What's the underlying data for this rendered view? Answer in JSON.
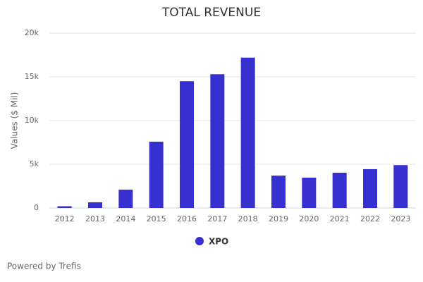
{
  "chart_data": {
    "type": "bar",
    "title": "TOTAL REVENUE",
    "y_label": "Values ($ Mil)",
    "categories": [
      "2012",
      "2013",
      "2014",
      "2015",
      "2016",
      "2017",
      "2018",
      "2019",
      "2020",
      "2021",
      "2022",
      "2023"
    ],
    "series": [
      {
        "name": "XPO",
        "color": "#3530cf",
        "values": [
          200,
          650,
          2100,
          7580,
          14500,
          15300,
          17200,
          3700,
          3470,
          4030,
          4440,
          4900
        ]
      }
    ],
    "ylim": [
      0,
      20000
    ],
    "yticks": [
      0,
      {
        "value": 5000,
        "label": "5k"
      },
      {
        "value": 10000,
        "label": "10k"
      },
      {
        "value": 15000,
        "label": "15k"
      },
      {
        "value": 20000,
        "label": "20k"
      }
    ],
    "grid": true,
    "legend": "bottom"
  },
  "footer": {
    "text": "Powered by Trefis"
  }
}
